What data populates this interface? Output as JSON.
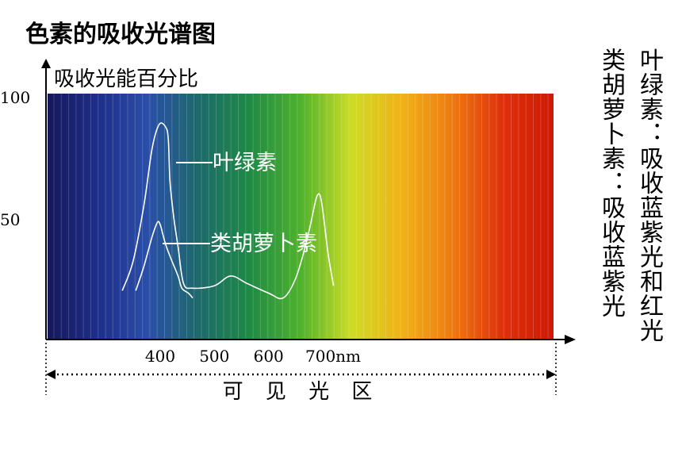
{
  "title": "色素的吸收光谱图",
  "side_notes": [
    "叶绿素：吸收蓝紫光和红光",
    "类胡萝卜素：吸收蓝紫光"
  ],
  "spectrum_colors": [
    "#15175a",
    "#1f2f8a",
    "#2a4fa8",
    "#1d6a6a",
    "#1e8a45",
    "#4fb22c",
    "#cddc25",
    "#f0b216",
    "#ee7a12",
    "#e0300a",
    "#cc1a06"
  ],
  "chart_data": {
    "type": "line",
    "ylabel": "吸收光能百分比",
    "xlabel": "可 见 光 区",
    "y_ticks": [
      {
        "value": 100,
        "label": "100"
      },
      {
        "value": 50,
        "label": "50"
      }
    ],
    "x_ticks": [
      {
        "value": 400,
        "label": "400"
      },
      {
        "value": 500,
        "label": "500"
      },
      {
        "value": 600,
        "label": "600"
      },
      {
        "value": 700,
        "label": "700nm"
      }
    ],
    "xlim": [
      310,
      750
    ],
    "ylim": [
      0,
      100
    ],
    "series": [
      {
        "name": "叶绿素",
        "x": [
          330,
          350,
          370,
          385,
          398,
          410,
          415,
          418,
          425,
          433,
          443,
          460,
          500,
          530,
          560,
          600,
          627,
          650,
          670,
          685,
          690,
          695,
          700,
          710,
          720
        ],
        "y": [
          20,
          32,
          55,
          78,
          88,
          87,
          82,
          65,
          50,
          38,
          23,
          21,
          22,
          26,
          23,
          19,
          17,
          25,
          40,
          55,
          59,
          59,
          53,
          35,
          22
        ]
      },
      {
        "name": "类胡萝卜素",
        "x": [
          355,
          370,
          385,
          395,
          400,
          405,
          410,
          420,
          433,
          440,
          452,
          460
        ],
        "y": [
          20,
          30,
          42,
          48,
          47,
          43,
          39,
          33,
          26,
          21,
          19,
          17
        ]
      }
    ]
  }
}
